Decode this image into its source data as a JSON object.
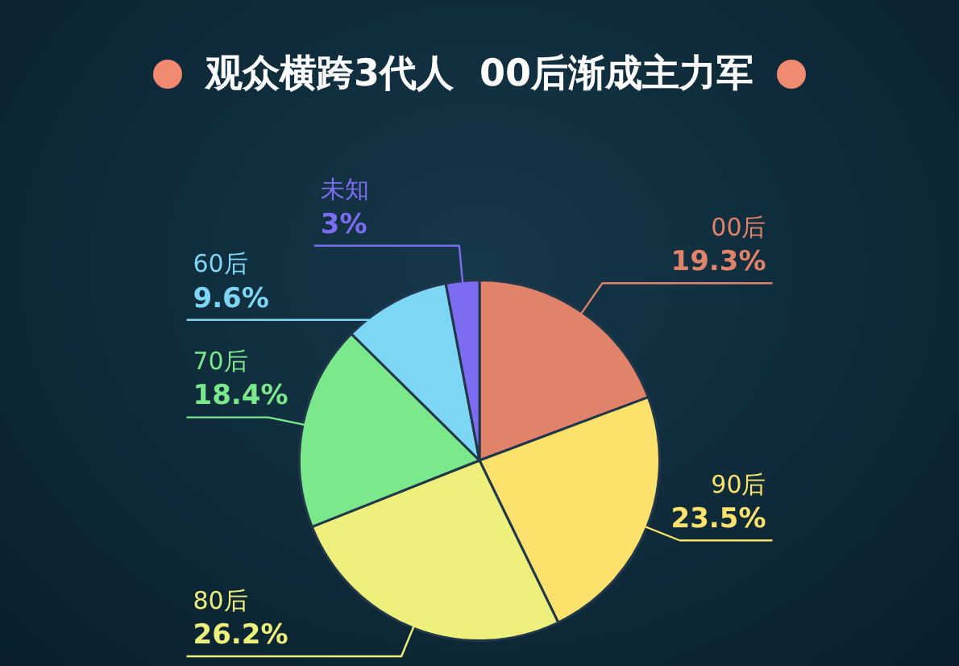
{
  "chart_data": {
    "type": "pie",
    "title": "观众横跨3代人  00后渐成主力军",
    "categories": [
      "00后",
      "90后",
      "80后",
      "70后",
      "60后",
      "未知"
    ],
    "values": [
      19.3,
      23.5,
      26.2,
      18.4,
      9.6,
      3
    ],
    "value_labels": [
      "19.3%",
      "23.5%",
      "26.2%",
      "18.4%",
      "9.6%",
      "3%"
    ],
    "colors": [
      "#e0836a",
      "#fce26c",
      "#eef07c",
      "#7ce88c",
      "#7cd6f4",
      "#7c6cf2"
    ],
    "legend": false
  }
}
